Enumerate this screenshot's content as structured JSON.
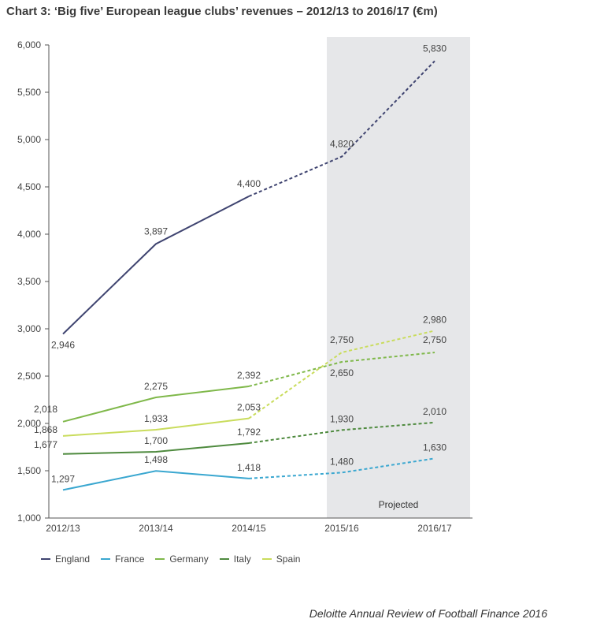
{
  "chart_data": {
    "type": "line",
    "title": "Chart 3: ‘Big five’ European league clubs’ revenues – 2012/13 to 2016/17 (€m)",
    "categories": [
      "2012/13",
      "2013/14",
      "2014/15",
      "2015/16",
      "2016/17"
    ],
    "projected_from": "2014/15",
    "projected_label": "Projected",
    "ylim": [
      1000,
      6000
    ],
    "yticks": [
      "1,000",
      "1,500",
      "2,000",
      "2,500",
      "3,000",
      "3,500",
      "4,000",
      "4,500",
      "5,000",
      "5,500",
      "6,000"
    ],
    "grid": false,
    "legend": "bottom",
    "series": [
      {
        "name": "England",
        "color": "#3f4470",
        "values": [
          2946,
          3897,
          4400,
          4820,
          5830
        ],
        "labels": [
          "2,946",
          "3,897",
          "4,400",
          "4,820",
          "5,830"
        ]
      },
      {
        "name": "France",
        "color": "#3aa7d0",
        "values": [
          1297,
          1498,
          1418,
          1480,
          1630
        ],
        "labels": [
          "1,297",
          "1,498",
          "1,418",
          "1,480",
          "1,630"
        ]
      },
      {
        "name": "Germany",
        "color": "#7fb84a",
        "values": [
          2018,
          2275,
          2392,
          2650,
          2750
        ],
        "labels": [
          "2,018",
          "2,275",
          "2,392",
          "2,650",
          "2,750"
        ]
      },
      {
        "name": "Italy",
        "color": "#4e8a3e",
        "values": [
          1677,
          1700,
          1792,
          1930,
          2010
        ],
        "labels": [
          "1,677",
          "1,700",
          "1,792",
          "1,930",
          "2,010"
        ]
      },
      {
        "name": "Spain",
        "color": "#c9dc5c",
        "values": [
          1868,
          1933,
          2053,
          2750,
          2980
        ],
        "labels": [
          "1,868",
          "1,933",
          "2,053",
          "2,750",
          "2,980"
        ]
      }
    ]
  },
  "source": "Deloitte Annual Review of Football Finance 2016"
}
